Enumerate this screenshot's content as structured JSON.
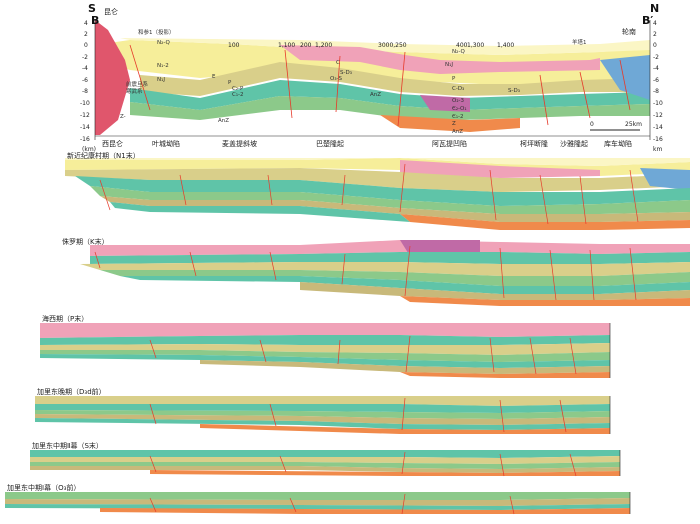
{
  "top_section": {
    "left_end_label": "S",
    "left_line_letter": "B",
    "right_end_label": "N",
    "right_line_letter": "B′",
    "left_place": "昆仑",
    "right_place": "轮南",
    "well_labels": [
      "和参1（投影）",
      "羊塔1"
    ],
    "distance_ticks": [
      "100",
      "1,100",
      "200",
      "1,200",
      "3000,250",
      "400",
      "1,300",
      "1,400"
    ],
    "depth_ticks": [
      "4",
      "2",
      "0",
      "-2",
      "-4",
      "-6",
      "-8",
      "-10",
      "-12",
      "-14",
      "-16"
    ],
    "depth_unit": "(km)",
    "depth_unit_right": "km",
    "scale_text": "25km",
    "scale_zero": "0",
    "unit_labels": [
      "N₂-Q",
      "N₁-2",
      "N₁J",
      "E",
      "P",
      "C",
      "C₂-P",
      "O₃-S",
      "C₁-2",
      "S-D₃",
      "AnZ",
      "AnZ",
      "N₂-Q",
      "N₁J",
      "P",
      "C-D₃",
      "O₂-3",
      "Є₂-O₁",
      "Є₁-2",
      "Z",
      "AnZ",
      "S-D₃",
      "Z-",
      "前震旦系",
      "寒武系"
    ],
    "structural_units": [
      "西昆仑",
      "叶城坳陷",
      "麦盖提斜坡",
      "巴楚隆起",
      "阿瓦提凹陷",
      "柯坪断隆",
      "沙雅隆起",
      "库车坳陷"
    ]
  },
  "stages": [
    {
      "label": "新近纪康村期（N1末）"
    },
    {
      "label": "侏罗期（K末）"
    },
    {
      "label": "海西期（P末）"
    },
    {
      "label": "加里东晚期（D₃d前）"
    },
    {
      "label": "加里东中期Ⅱ幕（S末）"
    },
    {
      "label": "加里东中期Ⅰ幕（O₃前）"
    }
  ],
  "colors": {
    "orange": "#f08a4b",
    "teal": "#5fc4a8",
    "sand": "#d9cf8a",
    "blue": "#6fa8d6",
    "green": "#8cc98a",
    "khaki": "#c8b97a",
    "pink": "#f0a2b8",
    "magenta": "#c06aa6",
    "yellow": "#f6ee9a",
    "paleyellow": "#fbf6c5",
    "red": "#e0566c",
    "fault": "#e63a2a"
  }
}
